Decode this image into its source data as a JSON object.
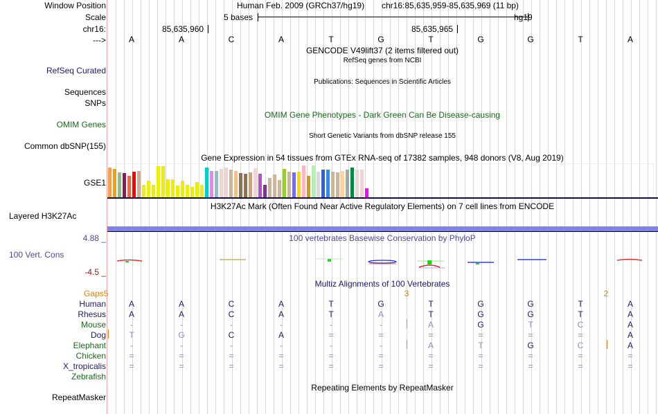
{
  "labels": {
    "window_position": "Window Position",
    "scale": "Scale",
    "chrom": "chr16:",
    "strand": "--->",
    "refseq": "RefSeq Curated",
    "sequences": "Sequences",
    "snps": "SNPs",
    "omim": "OMIM Genes",
    "dbsnp": "Common dbSNP(155)",
    "gse1": "GSE1",
    "h3k27ac": "Layered H3K27Ac",
    "cons_max": "4.88 _",
    "cons": "100 Vert. Cons",
    "cons_min": "-4.5 _",
    "gaps": "Gaps5",
    "repeatmasker": "RepeatMasker"
  },
  "header": {
    "assembly": "Human Feb. 2009 (GRCh37/hg19)",
    "position": "chr16:85,635,959-85,635,969 (11 bp)",
    "scale_label": "5 bases",
    "scale_db": "hg19",
    "coord1": "85,635,960",
    "coord2": "85,635,965"
  },
  "bases": [
    "A",
    "A",
    "C",
    "A",
    "T",
    "G",
    "T",
    "G",
    "G",
    "T",
    "A"
  ],
  "track_titles": {
    "gencode": "GENCODE V49lift37 (2 items filtered out)",
    "refseq": "RefSeq genes from NCBI",
    "publications": "Publications: Sequences in Scientific Articles",
    "omim": "OMIM Gene Phenotypes - Dark Green Can Be Disease-causing",
    "dbsnp": "Short Genetic Variants from dbSNP release 155",
    "gtex": "Gene Expression in 54 tissues from GTEx RNA-seq of 17382 samples, 948 donors (V8, Aug 2019)",
    "h3k27ac": "H3K27Ac Mark (Often Found Near Active Regulatory Elements) on 7 cell lines from ENCODE",
    "cons": "100 vertebrates Basewise Conservation by PhyloP",
    "multiz": "Multiz Alignments of 100 Vertebrates",
    "repeat": "Repeating Elements by RepeatMasker"
  },
  "gtex": {
    "relative_heights": [
      0.93,
      0.89,
      0.78,
      0.76,
      0.67,
      0.8,
      0.83,
      0.4,
      0.52,
      0.4,
      0.97,
      0.97,
      0.57,
      0.57,
      0.36,
      0.52,
      0.4,
      0.32,
      0.47,
      0.4,
      0.93,
      0.83,
      0.83,
      0.9,
      0.94,
      0.88,
      0.83,
      0.76,
      0.74,
      0.78,
      0.92,
      0.73,
      0.4,
      0.61,
      0.71,
      0.55,
      0.9,
      0.81,
      0.78,
      0.81,
      1.0,
      0.67,
      1.0,
      0.81,
      0.88,
      0.88,
      0.81,
      0.78,
      0.83,
      0.88,
      0.94,
      0.86,
      0.88,
      0.28
    ],
    "colors": [
      "#f7a050",
      "#f0a010",
      "#8fbc8f",
      "#8b1a5a",
      "#e86850",
      "#ff0000",
      "#c8ae98",
      "#eeee00",
      "#eeee00",
      "#eeee00",
      "#eeee00",
      "#eeee00",
      "#eeee00",
      "#eeee00",
      "#eeee00",
      "#eeee00",
      "#eeee00",
      "#eeee00",
      "#eeee00",
      "#eeee00",
      "#00cccc",
      "#ee82ee",
      "#9ab8c8",
      "#eed5d0",
      "#eed5d0",
      "#cdb59a",
      "#eec08a",
      "#8b7355",
      "#8b7355",
      "#cda278",
      "#eed5d2",
      "#b452cd",
      "#7a378b",
      "#cdb59a",
      "#cdb59a",
      "#cdb59a",
      "#9acd32",
      "#cdb59a",
      "#7b68ee",
      "#ffd700",
      "#ffb6c1",
      "#cd9b1d",
      "#b4eeb4",
      "#d9d9d9",
      "#3a5fcd",
      "#1e90ff",
      "#cdb59a",
      "#cdb59a",
      "#ffd39b",
      "#a6a6a6",
      "#008b45",
      "#eed5d2",
      "#eed5d2",
      "#ff00ff"
    ]
  },
  "multiz": {
    "species": [
      {
        "name": "Human",
        "color": "navy",
        "bases": [
          "A",
          "A",
          "C",
          "A",
          "T",
          "G",
          "T",
          "G",
          "G",
          "T",
          "A"
        ],
        "dim": [
          0,
          0,
          0,
          0,
          0,
          0,
          0,
          0,
          0,
          0,
          0
        ]
      },
      {
        "name": "Rhesus",
        "color": "navy",
        "bases": [
          "A",
          "A",
          "C",
          "A",
          "T",
          "A",
          "T",
          "G",
          "G",
          "T",
          "A"
        ],
        "dim": [
          0,
          0,
          0,
          0,
          0,
          1,
          0,
          0,
          0,
          0,
          0
        ]
      },
      {
        "name": "Mouse",
        "color": "green",
        "bases": [
          "-",
          "-",
          "-",
          "-",
          "-",
          "-",
          "A",
          "G",
          "T",
          "C",
          "A"
        ],
        "dim": [
          1,
          1,
          1,
          1,
          1,
          1,
          1,
          0,
          1,
          1,
          0
        ]
      },
      {
        "name": "Dog",
        "color": "navy",
        "bases": [
          "T",
          "G",
          "C",
          "A",
          "=",
          "=",
          "=",
          "=",
          "=",
          "=",
          "A"
        ],
        "dim": [
          1,
          1,
          0,
          0,
          1,
          1,
          1,
          1,
          1,
          1,
          0
        ]
      },
      {
        "name": "Elephant",
        "color": "green",
        "bases": [
          "-",
          "-",
          "-",
          "-",
          "-",
          "-",
          "A",
          "T",
          "G",
          "C",
          "A"
        ],
        "dim": [
          1,
          1,
          1,
          1,
          1,
          1,
          1,
          1,
          0,
          1,
          0
        ]
      },
      {
        "name": "Chicken",
        "color": "green",
        "bases": [
          "=",
          "=",
          "=",
          "=",
          "=",
          "=",
          "=",
          "=",
          "=",
          "=",
          "="
        ],
        "dim": [
          1,
          1,
          1,
          1,
          1,
          1,
          1,
          1,
          1,
          1,
          1
        ]
      },
      {
        "name": "X_tropicalis",
        "color": "navy",
        "bases": [
          "=",
          "=",
          "=",
          "=",
          "=",
          "=",
          "=",
          "=",
          "=",
          "=",
          "="
        ],
        "dim": [
          1,
          1,
          1,
          1,
          1,
          1,
          1,
          1,
          1,
          1,
          1
        ]
      },
      {
        "name": "Zebrafish",
        "color": "green",
        "bases": [
          "",
          "",
          "",
          "",
          "",
          "",
          "",
          "",
          "",
          "",
          ""
        ],
        "dim": [
          0,
          0,
          0,
          0,
          0,
          0,
          0,
          0,
          0,
          0,
          0
        ]
      }
    ],
    "gap_counts": [
      {
        "label": "3"
      },
      {
        "label": "2"
      }
    ]
  }
}
